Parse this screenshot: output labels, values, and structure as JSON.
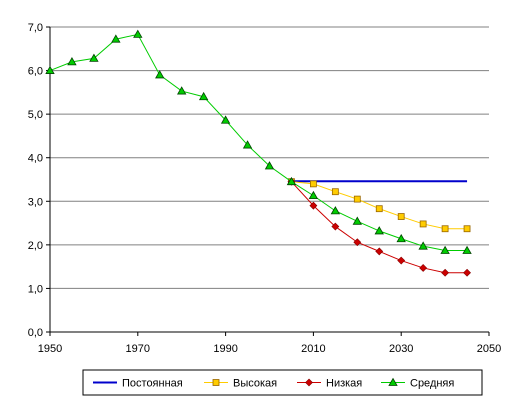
{
  "chart_data": {
    "type": "line",
    "title": "",
    "xlabel": "",
    "ylabel": "",
    "xlim": [
      1950,
      2050
    ],
    "ylim": [
      0,
      7
    ],
    "x_ticks": [
      1950,
      1970,
      1990,
      2010,
      2030,
      2050
    ],
    "x_tick_labels": [
      "1950",
      "1970",
      "1990",
      "2010",
      "2030",
      "2050"
    ],
    "y_ticks": [
      0,
      1,
      2,
      3,
      4,
      5,
      6,
      7
    ],
    "y_tick_labels": [
      "0,0",
      "1,0",
      "2,0",
      "3,0",
      "4,0",
      "5,0",
      "6,0",
      "7,0"
    ],
    "grid": "horizontal",
    "legend_position": "bottom",
    "series": [
      {
        "name": "Постоянная",
        "color": "#0000cc",
        "marker": "none",
        "x": [
          2005,
          2045
        ],
        "y": [
          3.46,
          3.46
        ]
      },
      {
        "name": "Высокая",
        "color": "#ffcc00",
        "marker": "square",
        "x": [
          2005,
          2010,
          2015,
          2020,
          2025,
          2030,
          2035,
          2040,
          2045
        ],
        "y": [
          3.45,
          3.4,
          3.22,
          3.05,
          2.83,
          2.65,
          2.48,
          2.37,
          2.37
        ]
      },
      {
        "name": "Низкая",
        "color": "#cc0000",
        "marker": "diamond",
        "x": [
          2005,
          2010,
          2015,
          2020,
          2025,
          2030,
          2035,
          2040,
          2045
        ],
        "y": [
          3.45,
          2.9,
          2.42,
          2.06,
          1.85,
          1.64,
          1.47,
          1.36,
          1.36
        ]
      },
      {
        "name": "Средняя",
        "color": "#00cc00",
        "marker": "triangle",
        "x": [
          1950,
          1955,
          1960,
          1965,
          1970,
          1975,
          1980,
          1985,
          1990,
          1995,
          2000,
          2005,
          2010,
          2015,
          2020,
          2025,
          2030,
          2035,
          2040,
          2045
        ],
        "y": [
          6.0,
          6.2,
          6.28,
          6.72,
          6.83,
          5.9,
          5.53,
          5.4,
          4.86,
          4.29,
          3.81,
          3.45,
          3.13,
          2.78,
          2.54,
          2.32,
          2.14,
          1.97,
          1.87,
          1.87
        ]
      }
    ]
  }
}
